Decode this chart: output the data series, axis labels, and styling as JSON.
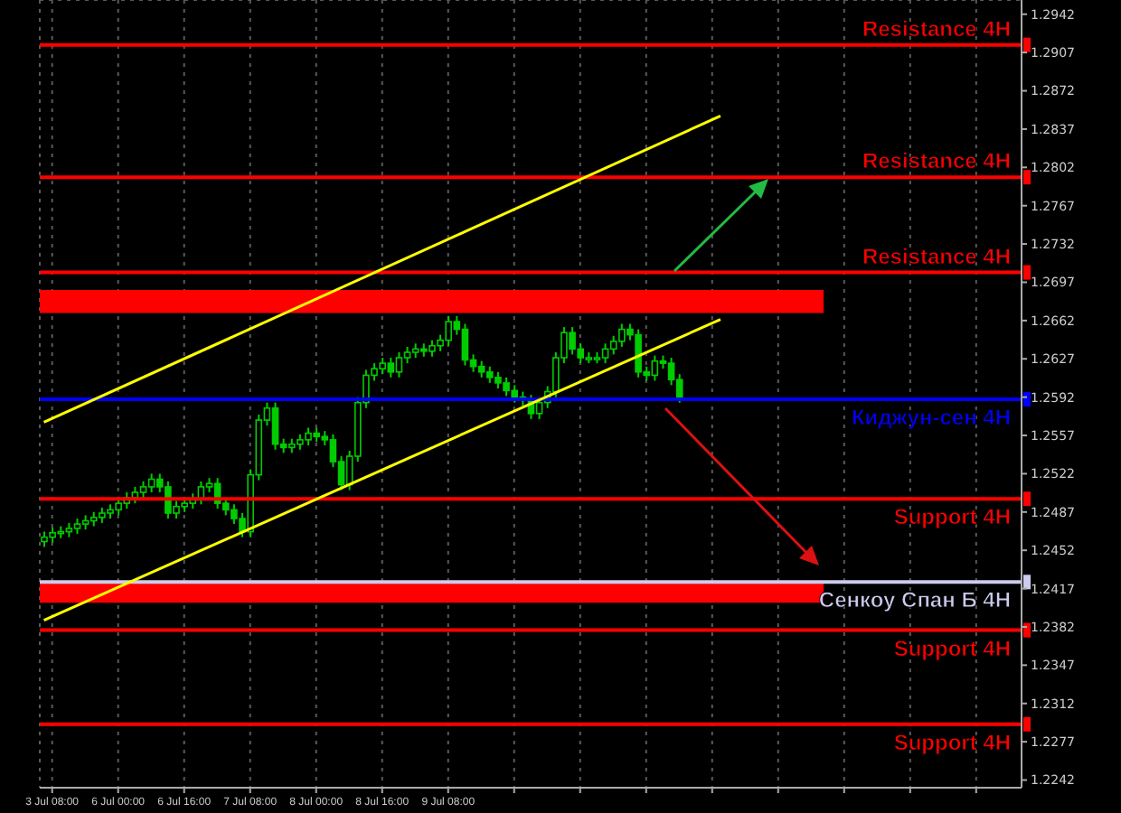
{
  "chart_data": {
    "type": "candlestick",
    "grid": true,
    "legend": false,
    "categories": [
      null,
      "3 Jul 08:00",
      null,
      null,
      null,
      null,
      null,
      null,
      null,
      "6 Jul 00:00",
      null,
      null,
      null,
      null,
      null,
      null,
      null,
      "6 Jul 16:00",
      null,
      null,
      null,
      null,
      null,
      null,
      null,
      "7 Jul 08:00",
      null,
      null,
      null,
      null,
      null,
      null,
      null,
      "8 Jul 00:00",
      null,
      null,
      null,
      null,
      null,
      null,
      null,
      "8 Jul 16:00",
      null,
      null,
      null,
      null,
      null,
      null,
      null,
      "9 Jul 08:00",
      null,
      null,
      null,
      null,
      null,
      null,
      null,
      null,
      null,
      null,
      null,
      null,
      null,
      null,
      null,
      null,
      null,
      null,
      null,
      null,
      null,
      null,
      null,
      null,
      null,
      null,
      null,
      null,
      null,
      null,
      null,
      null,
      null,
      null,
      null,
      null,
      null,
      null,
      null,
      null,
      null,
      null,
      null,
      null,
      null,
      null,
      null,
      null,
      null,
      null,
      null,
      null,
      null,
      null,
      null,
      null,
      null,
      null,
      null,
      null,
      null,
      null,
      null,
      null,
      null,
      null,
      null,
      null,
      null
    ],
    "ylim": [
      1.2235,
      1.2955
    ],
    "yticks": [
      1.2242,
      1.2277,
      1.2312,
      1.2347,
      1.2382,
      1.2417,
      1.2452,
      1.2487,
      1.2522,
      1.2557,
      1.2592,
      1.2627,
      1.2662,
      1.2697,
      1.2732,
      1.2767,
      1.2802,
      1.2837,
      1.2872,
      1.2907,
      1.2942
    ],
    "series": [
      {
        "color": "#00cc00",
        "ohlc": [
          [
            1.246,
            1.2469,
            1.2455,
            1.2464
          ],
          [
            1.2464,
            1.2473,
            1.2459,
            1.2468
          ],
          [
            1.2468,
            1.2474,
            1.2463,
            1.2469
          ],
          [
            1.2469,
            1.2477,
            1.2464,
            1.2472
          ],
          [
            1.2472,
            1.2481,
            1.2467,
            1.2476
          ],
          [
            1.2476,
            1.2484,
            1.2471,
            1.2479
          ],
          [
            1.2479,
            1.2487,
            1.2474,
            1.2482
          ],
          [
            1.2482,
            1.2491,
            1.2477,
            1.2486
          ],
          [
            1.2486,
            1.2494,
            1.2481,
            1.2489
          ],
          [
            1.2489,
            1.25,
            1.2484,
            1.2495
          ],
          [
            1.2495,
            1.2505,
            1.249,
            1.25
          ],
          [
            1.25,
            1.251,
            1.2495,
            1.2505
          ],
          [
            1.2505,
            1.2515,
            1.25,
            1.251
          ],
          [
            1.251,
            1.2522,
            1.2505,
            1.2517
          ],
          [
            1.2517,
            1.2522,
            1.2505,
            1.251
          ],
          [
            1.251,
            1.2515,
            1.2481,
            1.2486
          ],
          [
            1.2486,
            1.2497,
            1.2481,
            1.2492
          ],
          [
            1.2492,
            1.25,
            1.2487,
            1.2495
          ],
          [
            1.2495,
            1.2504,
            1.249,
            1.2499
          ],
          [
            1.2499,
            1.2515,
            1.2494,
            1.251
          ],
          [
            1.251,
            1.2518,
            1.2505,
            1.2513
          ],
          [
            1.2513,
            1.2518,
            1.249,
            1.2495
          ],
          [
            1.2495,
            1.25,
            1.2484,
            1.2489
          ],
          [
            1.2489,
            1.2494,
            1.2476,
            1.2481
          ],
          [
            1.2481,
            1.2486,
            1.2464,
            1.2469
          ],
          [
            1.2469,
            1.2526,
            1.2464,
            1.2521
          ],
          [
            1.2521,
            1.2576,
            1.2516,
            1.2571
          ],
          [
            1.2571,
            1.2587,
            1.2566,
            1.2582
          ],
          [
            1.2582,
            1.2587,
            1.2544,
            1.2549
          ],
          [
            1.2549,
            1.2554,
            1.2541,
            1.2546
          ],
          [
            1.2546,
            1.2554,
            1.2541,
            1.2549
          ],
          [
            1.2549,
            1.2558,
            1.2544,
            1.2553
          ],
          [
            1.2553,
            1.2564,
            1.2548,
            1.2559
          ],
          [
            1.2559,
            1.2564,
            1.2551,
            1.2556
          ],
          [
            1.2556,
            1.2561,
            1.2548,
            1.2553
          ],
          [
            1.2553,
            1.2558,
            1.2528,
            1.2533
          ],
          [
            1.2533,
            1.2538,
            1.2507,
            1.2512
          ],
          [
            1.2512,
            1.2543,
            1.2507,
            1.2538
          ],
          [
            1.2538,
            1.2592,
            1.2533,
            1.2587
          ],
          [
            1.2587,
            1.2617,
            1.2582,
            1.2612
          ],
          [
            1.2612,
            1.2623,
            1.2607,
            1.2618
          ],
          [
            1.2618,
            1.2628,
            1.2613,
            1.2623
          ],
          [
            1.2623,
            1.2628,
            1.261,
            1.2615
          ],
          [
            1.2615,
            1.2633,
            1.261,
            1.2628
          ],
          [
            1.2628,
            1.2638,
            1.2623,
            1.2633
          ],
          [
            1.2633,
            1.2641,
            1.2628,
            1.2636
          ],
          [
            1.2636,
            1.2641,
            1.2629,
            1.2634
          ],
          [
            1.2634,
            1.2644,
            1.2629,
            1.2639
          ],
          [
            1.2639,
            1.2649,
            1.2634,
            1.2644
          ],
          [
            1.2644,
            1.2666,
            1.2639,
            1.2661
          ],
          [
            1.2661,
            1.2666,
            1.2649,
            1.2654
          ],
          [
            1.2654,
            1.2659,
            1.2621,
            1.2626
          ],
          [
            1.2626,
            1.2631,
            1.2615,
            1.262
          ],
          [
            1.262,
            1.2625,
            1.261,
            1.2615
          ],
          [
            1.2615,
            1.262,
            1.2605,
            1.261
          ],
          [
            1.261,
            1.2615,
            1.26,
            1.2605
          ],
          [
            1.2605,
            1.261,
            1.2593,
            1.2598
          ],
          [
            1.2598,
            1.2603,
            1.2587,
            1.2592
          ],
          [
            1.2592,
            1.2597,
            1.2584,
            1.2589
          ],
          [
            1.2589,
            1.2594,
            1.2572,
            1.2577
          ],
          [
            1.2577,
            1.2592,
            1.2572,
            1.2587
          ],
          [
            1.2587,
            1.2602,
            1.2582,
            1.2597
          ],
          [
            1.2597,
            1.2633,
            1.2592,
            1.2628
          ],
          [
            1.2628,
            1.2656,
            1.2623,
            1.2651
          ],
          [
            1.2651,
            1.2656,
            1.2631,
            1.2636
          ],
          [
            1.2636,
            1.2641,
            1.2623,
            1.2628
          ],
          [
            1.2628,
            1.2633,
            1.2623,
            1.2628
          ],
          [
            1.2628,
            1.2633,
            1.2623,
            1.2628
          ],
          [
            1.2628,
            1.2641,
            1.2623,
            1.2636
          ],
          [
            1.2636,
            1.2648,
            1.2631,
            1.2643
          ],
          [
            1.2643,
            1.2659,
            1.2638,
            1.2654
          ],
          [
            1.2654,
            1.2659,
            1.2644,
            1.2649
          ],
          [
            1.2649,
            1.2654,
            1.261,
            1.2615
          ],
          [
            1.2615,
            1.262,
            1.2607,
            1.2612
          ],
          [
            1.2612,
            1.263,
            1.2607,
            1.2625
          ],
          [
            1.2625,
            1.263,
            1.2618,
            1.2623
          ],
          [
            1.2623,
            1.2628,
            1.2603,
            1.2608
          ],
          [
            1.2608,
            1.2613,
            1.2587,
            1.2592
          ],
          null,
          null,
          null,
          null,
          null,
          null,
          null,
          null,
          null,
          null,
          null,
          null,
          null,
          null,
          null,
          null,
          null,
          null,
          null,
          null,
          null,
          null,
          null,
          null,
          null,
          null,
          null,
          null,
          null,
          null,
          null,
          null,
          null,
          null,
          null,
          null,
          null,
          null,
          null,
          null,
          null
        ]
      },
      {
        "type": "line",
        "color": "#ffff00",
        "values": [
          1.2569,
          null,
          null,
          null,
          null,
          null,
          null,
          null,
          null,
          null,
          null,
          null,
          null,
          null,
          null,
          null,
          null,
          null,
          null,
          null,
          null,
          null,
          null,
          null,
          null,
          null,
          null,
          null,
          null,
          null,
          null,
          null,
          null,
          null,
          null,
          null,
          null,
          null,
          null,
          null,
          null,
          null,
          null,
          null,
          null,
          null,
          null,
          null,
          null,
          null,
          null,
          null,
          null,
          null,
          null,
          null,
          null,
          null,
          null,
          null,
          null,
          null,
          null,
          null,
          null,
          null,
          null,
          null,
          null,
          null,
          null,
          null,
          null,
          null,
          null,
          null,
          null,
          null,
          null,
          null,
          null,
          null,
          1.2849,
          null,
          null,
          null,
          null,
          null,
          null,
          null,
          null,
          null,
          null,
          null,
          null,
          null,
          null,
          null,
          null,
          null,
          null,
          null,
          null,
          null,
          null,
          null,
          null,
          null,
          null,
          null,
          null,
          null,
          null,
          null,
          null,
          null,
          null,
          null,
          null
        ]
      },
      {
        "type": "line",
        "color": "#ffff00",
        "values": [
          1.2388,
          null,
          null,
          null,
          null,
          null,
          null,
          null,
          null,
          null,
          null,
          null,
          null,
          null,
          null,
          null,
          null,
          null,
          null,
          null,
          null,
          null,
          null,
          null,
          null,
          null,
          null,
          null,
          null,
          null,
          null,
          null,
          null,
          null,
          null,
          null,
          null,
          null,
          null,
          null,
          null,
          null,
          null,
          null,
          null,
          null,
          null,
          null,
          null,
          null,
          null,
          null,
          null,
          null,
          null,
          null,
          null,
          null,
          null,
          null,
          null,
          null,
          null,
          null,
          null,
          null,
          null,
          null,
          null,
          null,
          null,
          null,
          null,
          null,
          null,
          null,
          null,
          null,
          null,
          null,
          null,
          null,
          1.2663,
          null,
          null,
          null,
          null,
          null,
          null,
          null,
          null,
          null,
          null,
          null,
          null,
          null,
          null,
          null,
          null,
          null,
          null,
          null,
          null,
          null,
          null,
          null,
          null,
          null,
          null,
          null,
          null,
          null,
          null,
          null,
          null,
          null,
          null,
          null,
          null
        ]
      }
    ],
    "ref_lines": [
      {
        "axis": "y",
        "value": 1.2914,
        "label": "Resistance 4H",
        "color": "#ff0000"
      },
      {
        "axis": "y",
        "value": 1.2793,
        "label": "Resistance 4H",
        "color": "#ff0000"
      },
      {
        "axis": "y",
        "value": 1.2706,
        "label": "Resistance 4H",
        "color": "#ff0000"
      },
      {
        "axis": "y",
        "value": 1.259,
        "label": "Киджун-сен 4H",
        "color": "#0000ff"
      },
      {
        "axis": "y",
        "value": 1.2499,
        "label": "Support 4H",
        "color": "#ff0000"
      },
      {
        "axis": "y",
        "value": 1.2423,
        "label": "Сенкоу Спан Б 4H",
        "color": "#ccccee"
      },
      {
        "axis": "y",
        "value": 1.2379,
        "label": "Support 4H",
        "color": "#ff0000"
      },
      {
        "axis": "y",
        "value": 1.2293,
        "label": "Support 4H",
        "color": "#ff0000"
      }
    ],
    "bands": [
      {
        "axis": "y",
        "from": 1.2669,
        "to": 1.269,
        "color": "#ff0000"
      },
      {
        "axis": "y",
        "from": 1.2404,
        "to": 1.2423,
        "color": "#ff0000"
      }
    ]
  }
}
